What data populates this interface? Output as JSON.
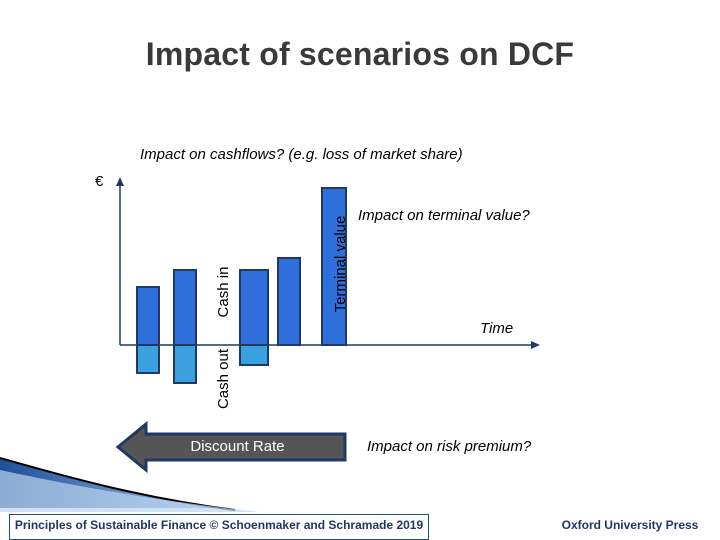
{
  "title": "Impact of scenarios on DCF",
  "annotations": {
    "cashflows": "Impact on cashflows? (e.g. loss of market share)",
    "terminal_value": "Impact on terminal value?",
    "time": "Time",
    "risk_premium": "Impact on risk premium?",
    "currency": "€"
  },
  "labels": {
    "cash_in": "Cash in",
    "cash_out": "Cash out",
    "terminal_value": "Terminal value",
    "discount_rate": "Discount Rate"
  },
  "colors": {
    "bar_in": "#2e6fdc",
    "bar_out": "#3aa0e0",
    "bar_border": "#1f3864",
    "arrow_fill": "#555555",
    "footer": "#1f3864"
  },
  "footer": {
    "left": "Principles of Sustainable Finance © Schoenmaker and Schramade 2019",
    "right": "Oxford University Press"
  }
}
